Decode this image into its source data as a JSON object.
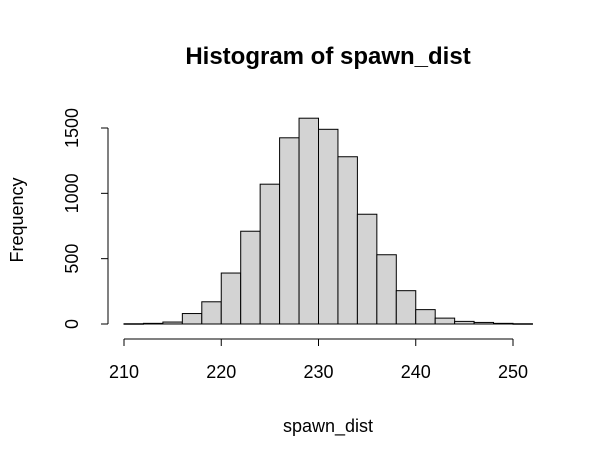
{
  "chart_data": {
    "type": "bar",
    "title": "Histogram of spawn_dist",
    "xlabel": "spawn_dist",
    "ylabel": "Frequency",
    "xlim": [
      210,
      252
    ],
    "ylim": [
      0,
      1600
    ],
    "x_ticks": [
      210,
      220,
      230,
      240,
      250
    ],
    "y_ticks": [
      0,
      500,
      1000,
      1500
    ],
    "bin_width": 2,
    "bins": [
      {
        "start": 210,
        "end": 212,
        "count": 2
      },
      {
        "start": 212,
        "end": 214,
        "count": 5
      },
      {
        "start": 214,
        "end": 216,
        "count": 15
      },
      {
        "start": 216,
        "end": 218,
        "count": 80
      },
      {
        "start": 218,
        "end": 220,
        "count": 170
      },
      {
        "start": 220,
        "end": 222,
        "count": 390
      },
      {
        "start": 222,
        "end": 224,
        "count": 710
      },
      {
        "start": 224,
        "end": 226,
        "count": 1070
      },
      {
        "start": 226,
        "end": 228,
        "count": 1425
      },
      {
        "start": 228,
        "end": 230,
        "count": 1575
      },
      {
        "start": 230,
        "end": 232,
        "count": 1490
      },
      {
        "start": 232,
        "end": 234,
        "count": 1280
      },
      {
        "start": 234,
        "end": 236,
        "count": 840
      },
      {
        "start": 236,
        "end": 238,
        "count": 530
      },
      {
        "start": 238,
        "end": 240,
        "count": 255
      },
      {
        "start": 240,
        "end": 242,
        "count": 110
      },
      {
        "start": 242,
        "end": 244,
        "count": 45
      },
      {
        "start": 244,
        "end": 246,
        "count": 20
      },
      {
        "start": 246,
        "end": 248,
        "count": 12
      },
      {
        "start": 248,
        "end": 250,
        "count": 5
      },
      {
        "start": 250,
        "end": 252,
        "count": 2
      }
    ],
    "bar_fill": "#d3d3d3",
    "bar_stroke": "#000000",
    "grid": false,
    "legend": "none"
  }
}
